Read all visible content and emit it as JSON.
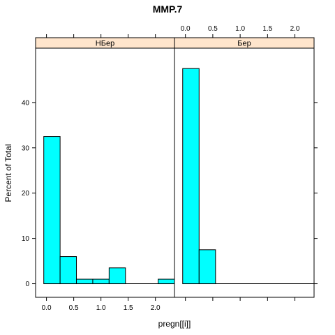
{
  "chart_data": {
    "type": "bar",
    "title": "MMP.7",
    "xlabel": "pregn[[i]]",
    "ylabel": "Percent of Total",
    "xlim": [
      -0.2,
      2.35
    ],
    "ylim": [
      -3,
      52
    ],
    "x_ticks": [
      "0.0",
      "0.5",
      "1.0",
      "1.5",
      "2.0"
    ],
    "y_ticks": [
      "0",
      "10",
      "20",
      "30",
      "40"
    ],
    "bin_edges": [
      -0.05,
      0.25,
      0.55,
      0.85,
      1.15,
      1.45,
      1.75,
      2.05,
      2.35
    ],
    "bar_color": "#00ffff",
    "strip_color": "#ffe5cc",
    "panels": [
      {
        "name": "НБер",
        "values": [
          32.5,
          6.0,
          1.0,
          1.0,
          3.5,
          0,
          0,
          1.0
        ]
      },
      {
        "name": "Бер",
        "values": [
          47.5,
          7.5,
          0,
          0,
          0,
          0,
          0,
          0
        ]
      }
    ]
  }
}
